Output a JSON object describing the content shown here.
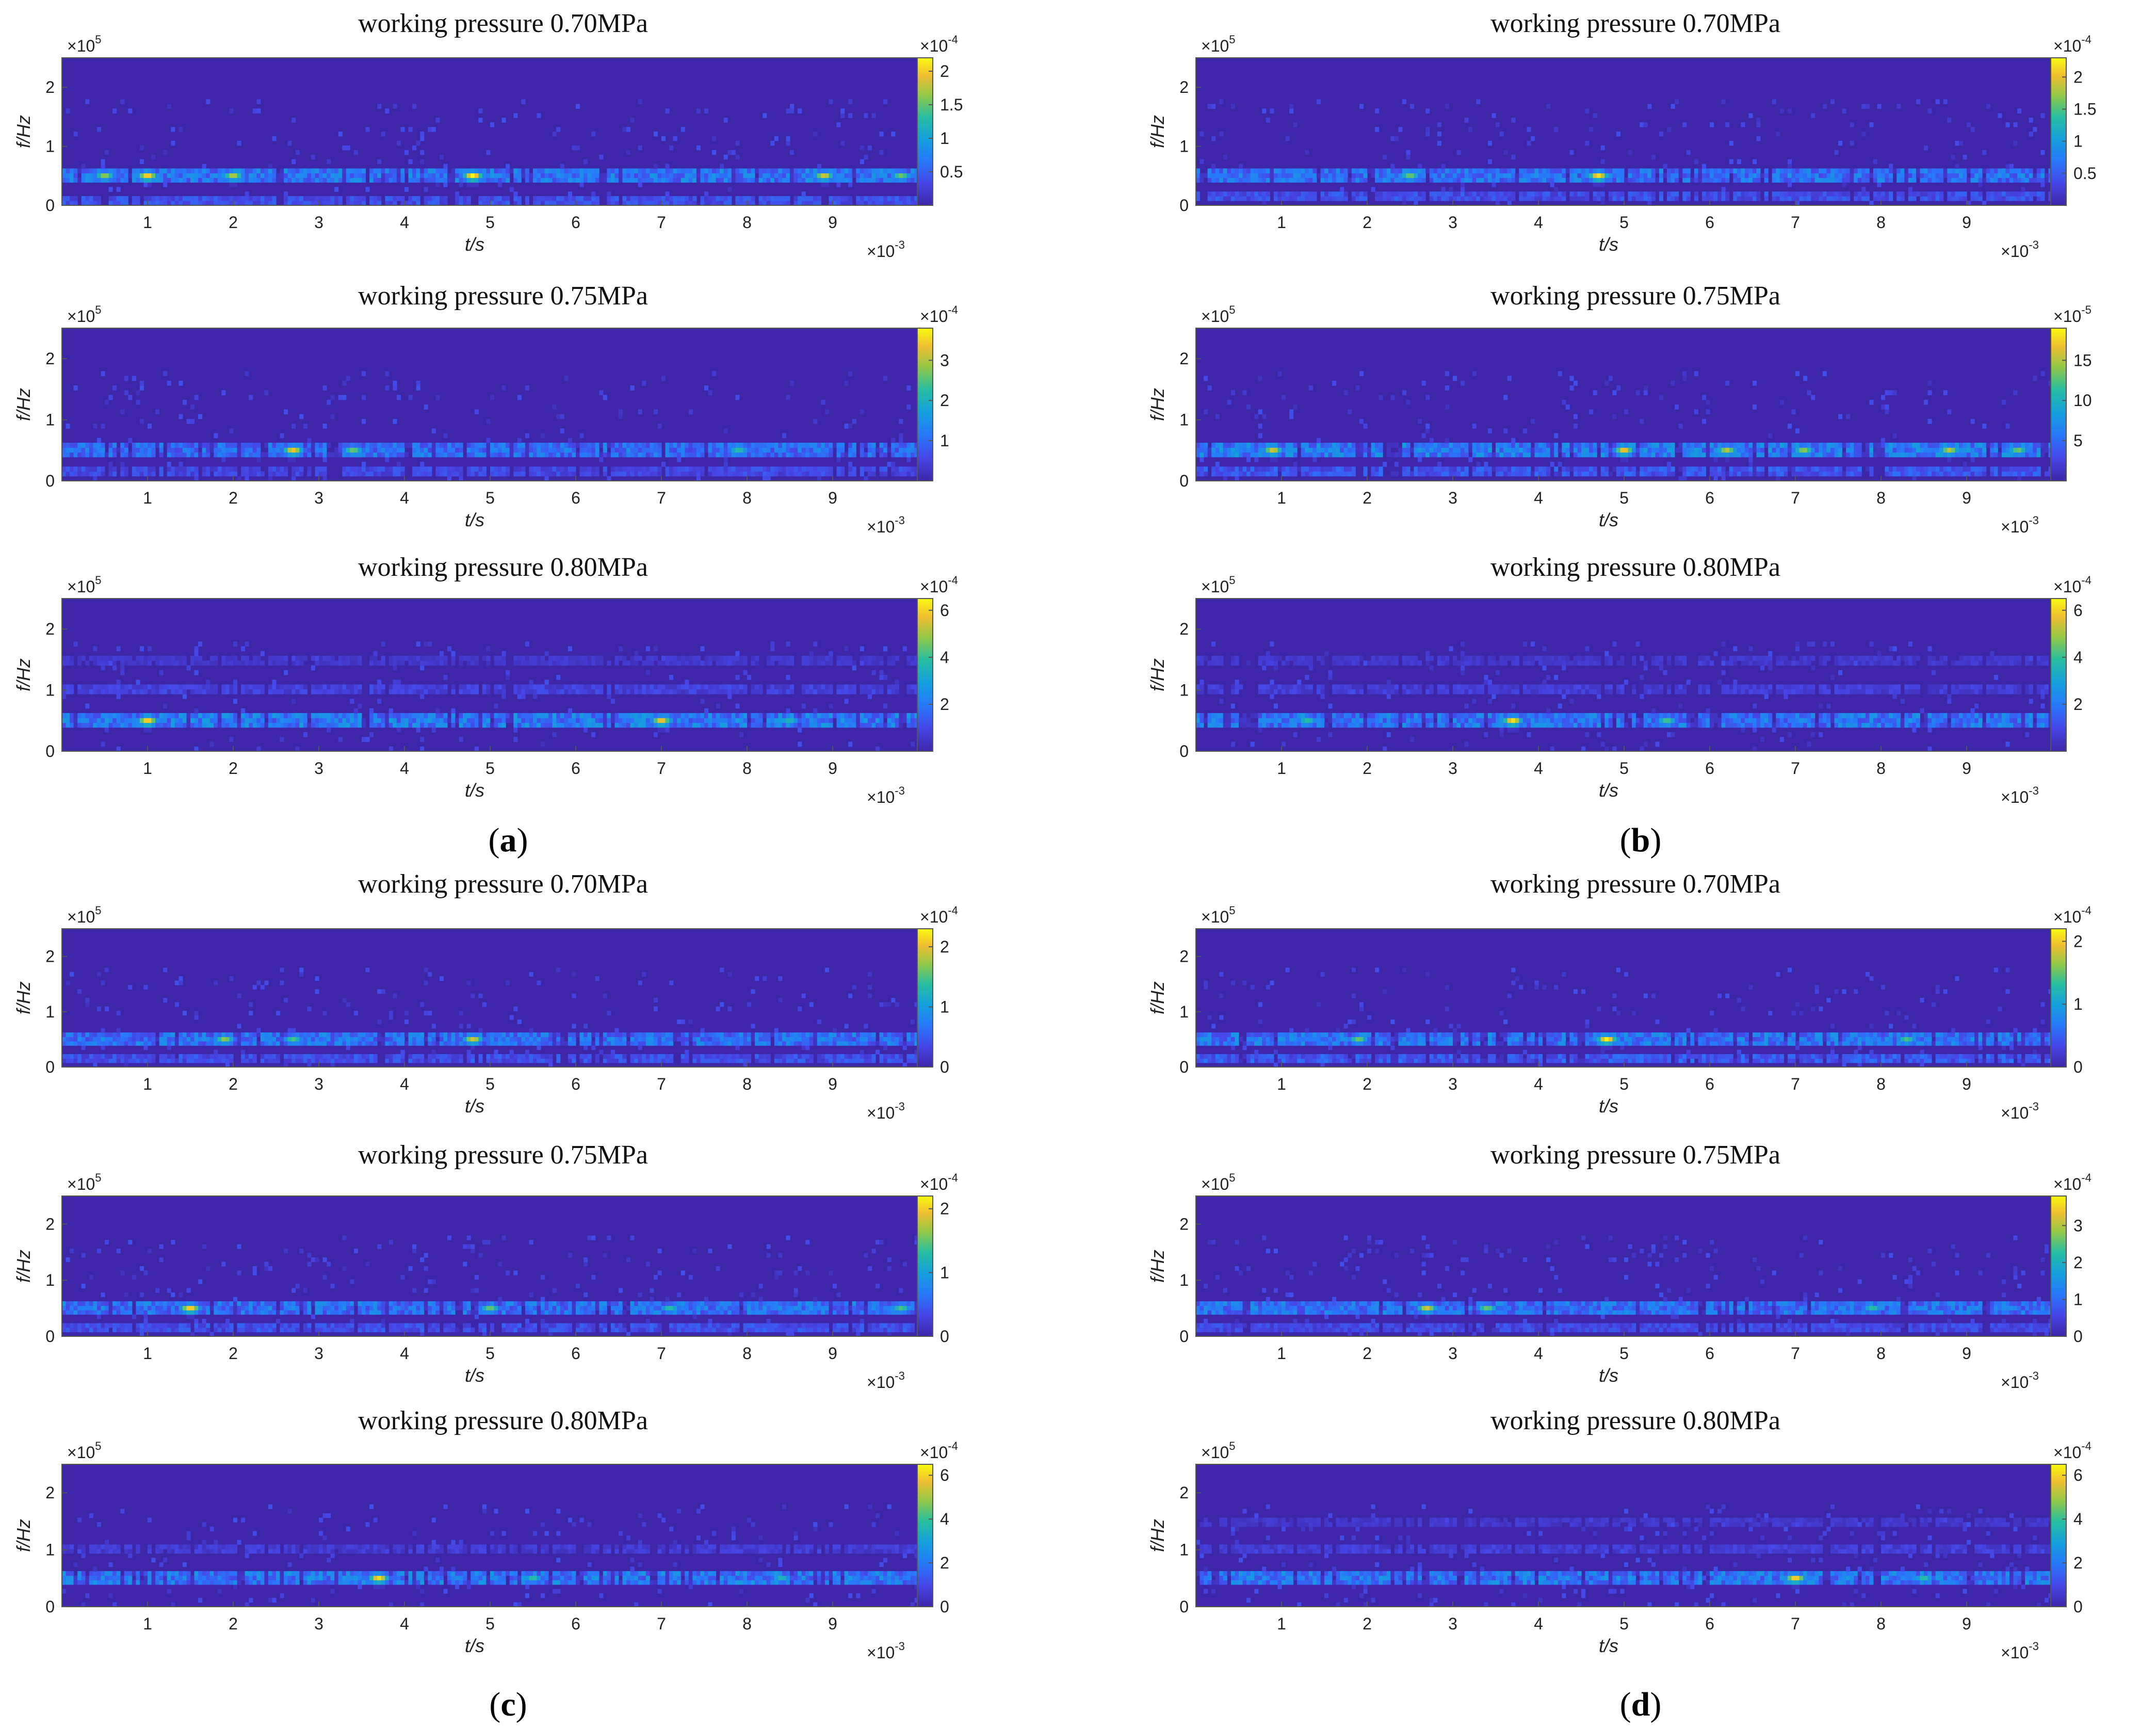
{
  "figure": {
    "plot_title": "working pressure",
    "x_label": "t/s",
    "y_label": "f/Hz",
    "x_multiplier": "×10",
    "x_exponent": "-3",
    "y_multiplier": "×10",
    "y_exponent": "5",
    "cb_multiplier": "×10",
    "colormap": "parula",
    "background_color": "#3e26a8"
  },
  "panels": [
    {
      "label": "a",
      "cb_exponents": [
        "-4",
        "-4",
        "-4"
      ]
    },
    {
      "label": "b",
      "cb_exponents": [
        "-4",
        "-5",
        "-4"
      ]
    },
    {
      "label": "c",
      "cb_exponents": [
        "-4",
        "-4",
        "-4"
      ]
    },
    {
      "label": "d",
      "cb_exponents": [
        "-4",
        "-4",
        "-4"
      ]
    }
  ],
  "chart_data": [
    {
      "type": "heatmap",
      "panel": "a",
      "pressure": "0.70MPa",
      "xlim": [
        0,
        10
      ],
      "ylim": [
        0,
        2.5
      ],
      "x_ticks": [
        1,
        2,
        3,
        4,
        5,
        6,
        7,
        8,
        9
      ],
      "y_ticks": [
        0,
        1,
        2
      ],
      "clim": [
        0,
        2.2
      ],
      "cb_ticks": [
        0.5,
        1,
        1.5,
        2
      ],
      "bands": [
        {
          "f": 0.5,
          "level": 0.42
        },
        {
          "f": 0.1,
          "level": 0.25
        }
      ],
      "hotspots": [
        {
          "t": 0.5,
          "f": 0.5,
          "level": 0.75
        },
        {
          "t": 1.0,
          "f": 0.5,
          "level": 0.95
        },
        {
          "t": 2.0,
          "f": 0.5,
          "level": 0.8
        },
        {
          "t": 4.8,
          "f": 0.5,
          "level": 1.0
        },
        {
          "t": 8.9,
          "f": 0.5,
          "level": 0.85
        },
        {
          "t": 9.8,
          "f": 0.5,
          "level": 0.7
        }
      ]
    },
    {
      "type": "heatmap",
      "panel": "a",
      "pressure": "0.75MPa",
      "xlim": [
        0,
        10
      ],
      "ylim": [
        0,
        2.5
      ],
      "x_ticks": [
        1,
        2,
        3,
        4,
        5,
        6,
        7,
        8,
        9
      ],
      "y_ticks": [
        0,
        1,
        2
      ],
      "clim": [
        0,
        3.8
      ],
      "cb_ticks": [
        1,
        2,
        3
      ],
      "bands": [
        {
          "f": 0.5,
          "level": 0.38
        },
        {
          "f": 0.15,
          "level": 0.22
        }
      ],
      "hotspots": [
        {
          "t": 2.7,
          "f": 0.5,
          "level": 0.9
        },
        {
          "t": 3.4,
          "f": 0.5,
          "level": 0.7
        },
        {
          "t": 7.9,
          "f": 0.5,
          "level": 0.6
        }
      ]
    },
    {
      "type": "heatmap",
      "panel": "a",
      "pressure": "0.80MPa",
      "xlim": [
        0,
        10
      ],
      "ylim": [
        0,
        2.5
      ],
      "x_ticks": [
        1,
        2,
        3,
        4,
        5,
        6,
        7,
        8,
        9
      ],
      "y_ticks": [
        0,
        1,
        2
      ],
      "clim": [
        0,
        6.5
      ],
      "cb_ticks": [
        2,
        4,
        6
      ],
      "bands": [
        {
          "f": 0.5,
          "level": 0.45
        },
        {
          "f": 1.0,
          "level": 0.18
        },
        {
          "f": 1.5,
          "level": 0.12
        }
      ],
      "hotspots": [
        {
          "t": 1.0,
          "f": 0.5,
          "level": 0.95
        },
        {
          "t": 7.0,
          "f": 0.5,
          "level": 0.9
        },
        {
          "t": 8.5,
          "f": 0.5,
          "level": 0.55
        }
      ]
    },
    {
      "type": "heatmap",
      "panel": "b",
      "pressure": "0.70MPa",
      "xlim": [
        0,
        10
      ],
      "ylim": [
        0,
        2.5
      ],
      "x_ticks": [
        1,
        2,
        3,
        4,
        5,
        6,
        7,
        8,
        9
      ],
      "y_ticks": [
        0,
        1,
        2
      ],
      "clim": [
        0,
        2.3
      ],
      "cb_ticks": [
        0.5,
        1,
        1.5,
        2
      ],
      "bands": [
        {
          "f": 0.5,
          "level": 0.4
        },
        {
          "f": 0.15,
          "level": 0.25
        }
      ],
      "hotspots": [
        {
          "t": 2.5,
          "f": 0.5,
          "level": 0.7
        },
        {
          "t": 4.7,
          "f": 0.5,
          "level": 0.95
        }
      ]
    },
    {
      "type": "heatmap",
      "panel": "b",
      "pressure": "0.75MPa",
      "xlim": [
        0,
        10
      ],
      "ylim": [
        0,
        2.5
      ],
      "x_ticks": [
        1,
        2,
        3,
        4,
        5,
        6,
        7,
        8,
        9
      ],
      "y_ticks": [
        0,
        1,
        2
      ],
      "clim": [
        0,
        19
      ],
      "cb_ticks": [
        5,
        10,
        15
      ],
      "bands": [
        {
          "f": 0.5,
          "level": 0.45
        },
        {
          "f": 0.15,
          "level": 0.28
        }
      ],
      "hotspots": [
        {
          "t": 0.9,
          "f": 0.5,
          "level": 0.85
        },
        {
          "t": 5.0,
          "f": 0.5,
          "level": 0.9
        },
        {
          "t": 6.2,
          "f": 0.5,
          "level": 0.8
        },
        {
          "t": 7.1,
          "f": 0.5,
          "level": 0.75
        },
        {
          "t": 8.8,
          "f": 0.5,
          "level": 0.8
        },
        {
          "t": 9.6,
          "f": 0.5,
          "level": 0.7
        }
      ]
    },
    {
      "type": "heatmap",
      "panel": "b",
      "pressure": "0.80MPa",
      "xlim": [
        0,
        10
      ],
      "ylim": [
        0,
        2.5
      ],
      "x_ticks": [
        1,
        2,
        3,
        4,
        5,
        6,
        7,
        8,
        9
      ],
      "y_ticks": [
        0,
        1,
        2
      ],
      "clim": [
        0,
        6.5
      ],
      "cb_ticks": [
        2,
        4,
        6
      ],
      "bands": [
        {
          "f": 0.5,
          "level": 0.42
        },
        {
          "f": 1.0,
          "level": 0.16
        },
        {
          "f": 1.5,
          "level": 0.12
        }
      ],
      "hotspots": [
        {
          "t": 1.3,
          "f": 0.5,
          "level": 0.6
        },
        {
          "t": 3.7,
          "f": 0.5,
          "level": 0.95
        },
        {
          "t": 5.5,
          "f": 0.5,
          "level": 0.65
        }
      ]
    },
    {
      "type": "heatmap",
      "panel": "c",
      "pressure": "0.70MPa",
      "xlim": [
        0,
        10
      ],
      "ylim": [
        0,
        2.5
      ],
      "x_ticks": [
        1,
        2,
        3,
        4,
        5,
        6,
        7,
        8,
        9
      ],
      "y_ticks": [
        0,
        1,
        2
      ],
      "clim": [
        0,
        2.3
      ],
      "cb_ticks": [
        0,
        1,
        2
      ],
      "bands": [
        {
          "f": 0.5,
          "level": 0.4
        },
        {
          "f": 0.15,
          "level": 0.25
        }
      ],
      "hotspots": [
        {
          "t": 1.9,
          "f": 0.5,
          "level": 0.75
        },
        {
          "t": 2.7,
          "f": 0.5,
          "level": 0.65
        },
        {
          "t": 4.8,
          "f": 0.5,
          "level": 0.85
        }
      ]
    },
    {
      "type": "heatmap",
      "panel": "c",
      "pressure": "0.75MPa",
      "xlim": [
        0,
        10
      ],
      "ylim": [
        0,
        2.5
      ],
      "x_ticks": [
        1,
        2,
        3,
        4,
        5,
        6,
        7,
        8,
        9
      ],
      "y_ticks": [
        0,
        1,
        2
      ],
      "clim": [
        0,
        2.2
      ],
      "cb_ticks": [
        0,
        1,
        2
      ],
      "bands": [
        {
          "f": 0.5,
          "level": 0.4
        },
        {
          "f": 0.15,
          "level": 0.25
        }
      ],
      "hotspots": [
        {
          "t": 1.5,
          "f": 0.5,
          "level": 0.95
        },
        {
          "t": 5.0,
          "f": 0.5,
          "level": 0.7
        },
        {
          "t": 7.1,
          "f": 0.5,
          "level": 0.6
        },
        {
          "t": 9.8,
          "f": 0.5,
          "level": 0.65
        }
      ]
    },
    {
      "type": "heatmap",
      "panel": "c",
      "pressure": "0.80MPa",
      "xlim": [
        0,
        10
      ],
      "ylim": [
        0,
        2.5
      ],
      "x_ticks": [
        1,
        2,
        3,
        4,
        5,
        6,
        7,
        8,
        9
      ],
      "y_ticks": [
        0,
        1,
        2
      ],
      "clim": [
        0,
        6.5
      ],
      "cb_ticks": [
        0,
        2,
        4,
        6
      ],
      "bands": [
        {
          "f": 0.5,
          "level": 0.43
        },
        {
          "f": 1.0,
          "level": 0.15
        }
      ],
      "hotspots": [
        {
          "t": 3.7,
          "f": 0.5,
          "level": 0.95
        },
        {
          "t": 5.5,
          "f": 0.5,
          "level": 0.6
        },
        {
          "t": 8.4,
          "f": 0.5,
          "level": 0.55
        }
      ]
    },
    {
      "type": "heatmap",
      "panel": "d",
      "pressure": "0.70MPa",
      "xlim": [
        0,
        10
      ],
      "ylim": [
        0,
        2.5
      ],
      "x_ticks": [
        1,
        2,
        3,
        4,
        5,
        6,
        7,
        8,
        9
      ],
      "y_ticks": [
        0,
        1,
        2
      ],
      "clim": [
        0,
        2.2
      ],
      "cb_ticks": [
        0,
        1,
        2
      ],
      "bands": [
        {
          "f": 0.5,
          "level": 0.42
        },
        {
          "f": 0.15,
          "level": 0.3
        }
      ],
      "hotspots": [
        {
          "t": 4.8,
          "f": 0.5,
          "level": 1.0
        },
        {
          "t": 1.9,
          "f": 0.5,
          "level": 0.7
        },
        {
          "t": 8.3,
          "f": 0.5,
          "level": 0.65
        }
      ]
    },
    {
      "type": "heatmap",
      "panel": "d",
      "pressure": "0.75MPa",
      "xlim": [
        0,
        10
      ],
      "ylim": [
        0,
        2.5
      ],
      "x_ticks": [
        1,
        2,
        3,
        4,
        5,
        6,
        7,
        8,
        9
      ],
      "y_ticks": [
        0,
        1,
        2
      ],
      "clim": [
        0,
        3.8
      ],
      "cb_ticks": [
        0,
        1,
        2,
        3
      ],
      "bands": [
        {
          "f": 0.5,
          "level": 0.4
        },
        {
          "f": 0.15,
          "level": 0.22
        }
      ],
      "hotspots": [
        {
          "t": 2.7,
          "f": 0.5,
          "level": 0.85
        },
        {
          "t": 3.4,
          "f": 0.5,
          "level": 0.7
        },
        {
          "t": 7.9,
          "f": 0.5,
          "level": 0.6
        }
      ]
    },
    {
      "type": "heatmap",
      "panel": "d",
      "pressure": "0.80MPa",
      "xlim": [
        0,
        10
      ],
      "ylim": [
        0,
        2.5
      ],
      "x_ticks": [
        1,
        2,
        3,
        4,
        5,
        6,
        7,
        8,
        9
      ],
      "y_ticks": [
        0,
        1,
        2
      ],
      "clim": [
        0,
        6.5
      ],
      "cb_ticks": [
        0,
        2,
        4,
        6
      ],
      "bands": [
        {
          "f": 0.5,
          "level": 0.43
        },
        {
          "f": 1.0,
          "level": 0.16
        },
        {
          "f": 1.5,
          "level": 0.12
        }
      ],
      "hotspots": [
        {
          "t": 7.0,
          "f": 0.5,
          "level": 0.95
        },
        {
          "t": 8.5,
          "f": 0.5,
          "level": 0.6
        }
      ]
    }
  ]
}
